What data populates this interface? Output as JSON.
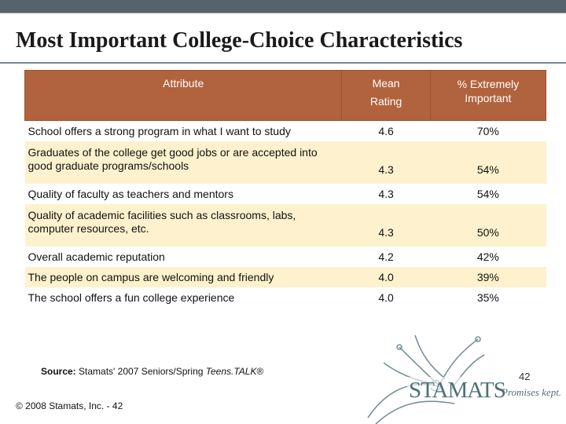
{
  "title": "Most Important College-Choice Characteristics",
  "table": {
    "headers": {
      "attribute": "Attribute",
      "mean_line1": "Mean",
      "mean_line2": "Rating",
      "pct_line1": "% Extremely",
      "pct_line2": "Important"
    },
    "rows": [
      {
        "attribute": "School offers a strong program in what I want to study",
        "mean": "4.6",
        "pct": "70%"
      },
      {
        "attribute": "Graduates of the college get good jobs or are accepted into good graduate programs/schools",
        "mean": "4.3",
        "pct": "54%"
      },
      {
        "attribute": "Quality of faculty as teachers and mentors",
        "mean": "4.3",
        "pct": "54%"
      },
      {
        "attribute": "Quality of academic facilities such as classrooms, labs, computer resources, etc.",
        "mean": "4.3",
        "pct": "50%"
      },
      {
        "attribute": "Overall academic reputation",
        "mean": "4.2",
        "pct": "42%"
      },
      {
        "attribute": "The people on campus are welcoming and friendly",
        "mean": "4.0",
        "pct": "39%"
      },
      {
        "attribute": "The school offers a fun college experience",
        "mean": "4.0",
        "pct": "35%"
      }
    ]
  },
  "source": {
    "label": "Source:",
    "text": "Stamats' 2007 Seniors/Spring",
    "italic": "Teens.TALK",
    "suffix": "®"
  },
  "footer": {
    "copyright": "© 2008 Stamats, Inc. - 42",
    "logo_text": "STAMATS",
    "tagline": "Promises kept.",
    "page_number": "42"
  },
  "colors": {
    "header_bg": "#b1633d",
    "stripe_bg": "#fdf2cd",
    "top_bar": "#58626b"
  }
}
